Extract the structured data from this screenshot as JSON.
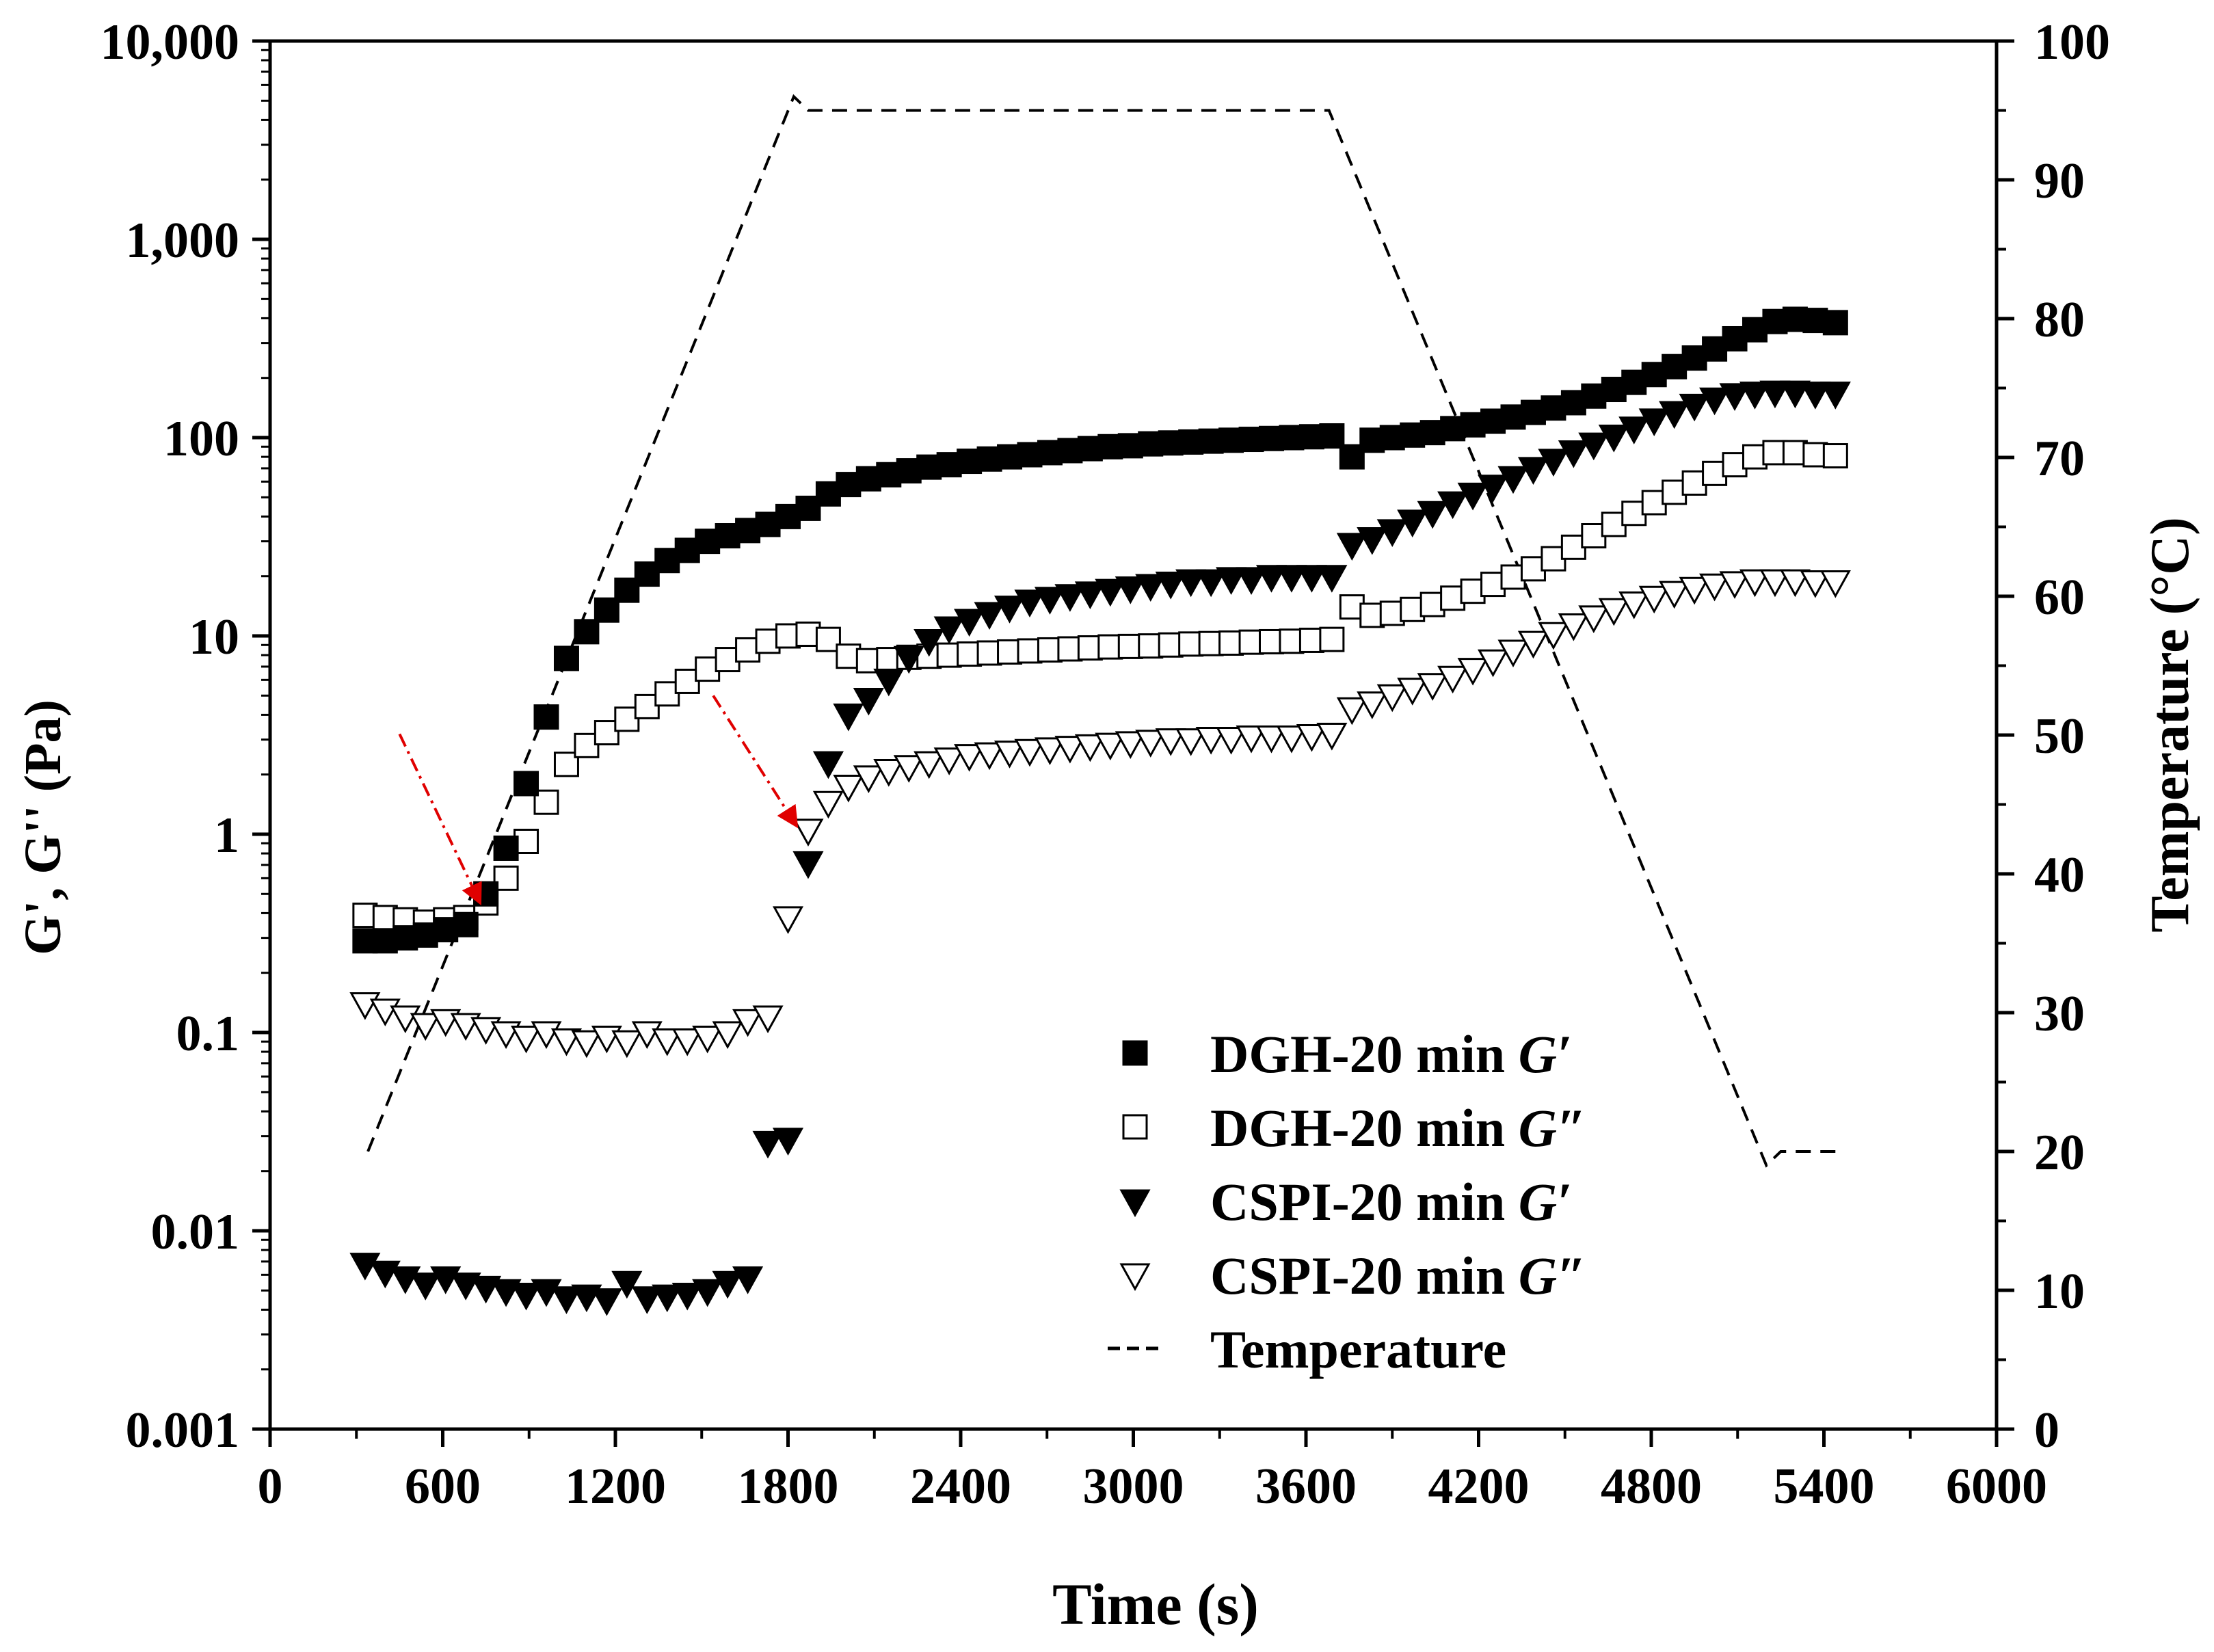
{
  "chart_data": {
    "type": "scatter",
    "title": "",
    "xlabel": "Time (s)",
    "ylabel": "G', G'' (Pa)",
    "y2label": "Temperature (°C)",
    "xlim": [
      0,
      6000
    ],
    "ylim": [
      0.001,
      10000
    ],
    "yscale": "log",
    "y2lim": [
      0,
      100
    ],
    "grid": false,
    "legend_position": "lower-right",
    "x_ticks": [
      0,
      600,
      1200,
      1800,
      2400,
      3000,
      3600,
      4200,
      4800,
      5400,
      6000
    ],
    "x_tick_labels": [
      "0",
      "600",
      "1200",
      "1800",
      "2400",
      "3000",
      "3600",
      "4200",
      "4800",
      "5400",
      "6000"
    ],
    "y_ticks": [
      0.001,
      0.01,
      0.1,
      1,
      10,
      100,
      1000,
      10000
    ],
    "y_tick_labels": [
      "0.001",
      "0.01",
      "0.1",
      "1",
      "10",
      "100",
      "1,000",
      "10,000"
    ],
    "y2_ticks": [
      0,
      10,
      20,
      30,
      40,
      50,
      60,
      70,
      80,
      90,
      100
    ],
    "y2_tick_labels": [
      "0",
      "10",
      "20",
      "30",
      "40",
      "50",
      "60",
      "70",
      "80",
      "90",
      "100"
    ],
    "series": [
      {
        "name": "DGH-20 min G′",
        "legend_prefix": "DGH-20 min ",
        "legend_italic": "G′",
        "marker": "square-filled",
        "x": [
          330,
          400,
          470,
          540,
          610,
          680,
          750,
          820,
          890,
          960,
          1030,
          1100,
          1170,
          1240,
          1310,
          1380,
          1450,
          1520,
          1590,
          1660,
          1730,
          1800,
          1870,
          1940,
          2010,
          2080,
          2150,
          2220,
          2290,
          2360,
          2430,
          2500,
          2570,
          2640,
          2710,
          2780,
          2850,
          2920,
          2990,
          3060,
          3130,
          3200,
          3270,
          3340,
          3410,
          3480,
          3550,
          3620,
          3690,
          3760,
          3830,
          3900,
          3970,
          4040,
          4110,
          4180,
          4250,
          4320,
          4390,
          4460,
          4530,
          4600,
          4670,
          4740,
          4810,
          4880,
          4950,
          5020,
          5090,
          5160,
          5230,
          5300,
          5370,
          5440
        ],
        "values": [
          0.29,
          0.29,
          0.3,
          0.31,
          0.33,
          0.35,
          0.5,
          0.85,
          1.8,
          3.9,
          7.7,
          10.5,
          13.5,
          17,
          20.5,
          24,
          27,
          30,
          32,
          34,
          36.5,
          40,
          44,
          52,
          58,
          62,
          65,
          68,
          71,
          73,
          76,
          78,
          80,
          82,
          84,
          86,
          88,
          90,
          91,
          93,
          94,
          95,
          96,
          97,
          98,
          99,
          100,
          101,
          102,
          80,
          97,
          100,
          103,
          106,
          111,
          116,
          121,
          127,
          134,
          141,
          150,
          162,
          175,
          190,
          208,
          228,
          252,
          280,
          315,
          350,
          385,
          395,
          390,
          380
        ]
      },
      {
        "name": "DGH-20 min G″",
        "legend_prefix": "DGH-20 min ",
        "legend_italic": "G″",
        "marker": "square-open",
        "x": [
          330,
          400,
          470,
          540,
          610,
          680,
          750,
          820,
          890,
          960,
          1030,
          1100,
          1170,
          1240,
          1310,
          1380,
          1450,
          1520,
          1590,
          1660,
          1730,
          1800,
          1870,
          1940,
          2010,
          2080,
          2150,
          2220,
          2290,
          2360,
          2430,
          2500,
          2570,
          2640,
          2710,
          2780,
          2850,
          2920,
          2990,
          3060,
          3130,
          3200,
          3270,
          3340,
          3410,
          3480,
          3550,
          3620,
          3690,
          3760,
          3830,
          3900,
          3970,
          4040,
          4110,
          4180,
          4250,
          4320,
          4390,
          4460,
          4530,
          4600,
          4670,
          4740,
          4810,
          4880,
          4950,
          5020,
          5090,
          5160,
          5230,
          5300,
          5370,
          5440
        ],
        "values": [
          0.39,
          0.38,
          0.37,
          0.36,
          0.37,
          0.38,
          0.45,
          0.6,
          0.92,
          1.45,
          2.25,
          2.8,
          3.25,
          3.8,
          4.4,
          5.1,
          5.9,
          6.8,
          7.6,
          8.5,
          9.4,
          10,
          10.2,
          9.6,
          7.9,
          7.5,
          7.6,
          7.8,
          7.9,
          8.0,
          8.1,
          8.2,
          8.3,
          8.4,
          8.5,
          8.6,
          8.7,
          8.8,
          8.85,
          8.9,
          9.0,
          9.1,
          9.15,
          9.2,
          9.3,
          9.35,
          9.4,
          9.5,
          9.6,
          14,
          12.7,
          13,
          13.6,
          14.4,
          15.5,
          16.8,
          18.2,
          19.8,
          21.8,
          24.5,
          28,
          32,
          36.5,
          41.5,
          47,
          53,
          59,
          66,
          73,
          80,
          84,
          84,
          82,
          81
        ]
      },
      {
        "name": "CSPI-20 min G′",
        "legend_prefix": "CSPI-20 min ",
        "legend_italic": "G′",
        "marker": "triangle-down-filled",
        "x": [
          330,
          400,
          470,
          540,
          610,
          680,
          750,
          820,
          890,
          960,
          1030,
          1100,
          1170,
          1240,
          1310,
          1380,
          1450,
          1520,
          1590,
          1660,
          1730,
          1800,
          1870,
          1940,
          2010,
          2080,
          2150,
          2220,
          2290,
          2360,
          2430,
          2500,
          2570,
          2640,
          2710,
          2780,
          2850,
          2920,
          2990,
          3060,
          3130,
          3200,
          3270,
          3340,
          3410,
          3480,
          3550,
          3620,
          3690,
          3760,
          3830,
          3900,
          3970,
          4040,
          4110,
          4180,
          4250,
          4320,
          4390,
          4460,
          4530,
          4600,
          4670,
          4740,
          4810,
          4880,
          4950,
          5020,
          5090,
          5160,
          5230,
          5300,
          5370,
          5440
        ],
        "values": [
          0.0068,
          0.0062,
          0.0058,
          0.0054,
          0.0058,
          0.0054,
          0.0052,
          0.005,
          0.0048,
          0.005,
          0.0046,
          0.0047,
          0.0045,
          0.0055,
          0.0046,
          0.0047,
          0.0048,
          0.005,
          0.0055,
          0.0058,
          0.028,
          0.029,
          0.72,
          2.3,
          4.0,
          4.8,
          6.0,
          7.8,
          9.5,
          11,
          12,
          13,
          14,
          15,
          15.5,
          16,
          16.5,
          17,
          17.5,
          18,
          18.5,
          19,
          19,
          19.5,
          19.5,
          20,
          20,
          20,
          20,
          29,
          31,
          34,
          38,
          42,
          47,
          52,
          57,
          63,
          70,
          77,
          85,
          93,
          102,
          112,
          123,
          134,
          146,
          157,
          165,
          168,
          170,
          170,
          168,
          168
        ]
      },
      {
        "name": "CSPI-20 min G″",
        "legend_prefix": "CSPI-20 min ",
        "legend_italic": "G″",
        "marker": "triangle-down-open",
        "x": [
          330,
          400,
          470,
          540,
          610,
          680,
          750,
          820,
          890,
          960,
          1030,
          1100,
          1170,
          1240,
          1310,
          1380,
          1450,
          1520,
          1590,
          1660,
          1730,
          1800,
          1870,
          1940,
          2010,
          2080,
          2150,
          2220,
          2290,
          2360,
          2430,
          2500,
          2570,
          2640,
          2710,
          2780,
          2850,
          2920,
          2990,
          3060,
          3130,
          3200,
          3270,
          3340,
          3410,
          3480,
          3550,
          3620,
          3690,
          3760,
          3830,
          3900,
          3970,
          4040,
          4110,
          4180,
          4250,
          4320,
          4390,
          4460,
          4530,
          4600,
          4670,
          4740,
          4810,
          4880,
          4950,
          5020,
          5090,
          5160,
          5230,
          5300,
          5370,
          5440
        ],
        "values": [
          0.14,
          0.13,
          0.12,
          0.11,
          0.115,
          0.11,
          0.105,
          0.1,
          0.095,
          0.1,
          0.092,
          0.09,
          0.095,
          0.09,
          0.1,
          0.092,
          0.092,
          0.095,
          0.1,
          0.115,
          0.12,
          0.38,
          1.05,
          1.45,
          1.75,
          1.95,
          2.1,
          2.2,
          2.3,
          2.4,
          2.5,
          2.55,
          2.6,
          2.65,
          2.7,
          2.75,
          2.8,
          2.85,
          2.9,
          2.95,
          3.0,
          3.0,
          3.05,
          3.05,
          3.1,
          3.1,
          3.1,
          3.15,
          3.2,
          4.3,
          4.6,
          5.0,
          5.4,
          5.7,
          6.2,
          6.8,
          7.5,
          8.4,
          9.3,
          10.3,
          11.4,
          12.5,
          13.6,
          14.7,
          15.7,
          16.6,
          17.4,
          18.1,
          18.6,
          19,
          19,
          19,
          18.8,
          18.8
        ]
      },
      {
        "name": "Temperature",
        "legend_prefix": "Temperature",
        "legend_italic": "",
        "marker": "dashed-line",
        "axis": "right",
        "x": [
          340,
          1820,
          1870,
          1900,
          3680,
          5200,
          5250,
          5300,
          5450
        ],
        "values": [
          20,
          96,
          95,
          95,
          95,
          19,
          20,
          20,
          20
        ]
      }
    ],
    "annotations": [
      {
        "type": "red-arrow",
        "from_x": 450,
        "from_y": 3.2,
        "to_x": 730,
        "to_y": 0.45
      },
      {
        "type": "red-arrow",
        "from_x": 1540,
        "from_y": 5.0,
        "to_x": 1830,
        "to_y": 1.1
      }
    ]
  }
}
